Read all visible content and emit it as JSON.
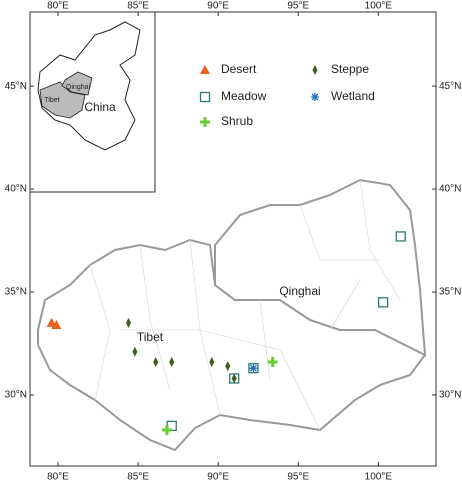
{
  "chart_data": {
    "type": "scatter",
    "xlim": [
      78.25,
      103.6
    ],
    "ylim": [
      26.55,
      48.6
    ],
    "xticks": [
      {
        "value": 80,
        "label": "80°E"
      },
      {
        "value": 85,
        "label": "85°E"
      },
      {
        "value": 90,
        "label": "90°E"
      },
      {
        "value": 95,
        "label": "95°E"
      },
      {
        "value": 100,
        "label": "100°E"
      }
    ],
    "yticks": [
      {
        "value": 30,
        "label": "30°N"
      },
      {
        "value": 35,
        "label": "35°N"
      },
      {
        "value": 40,
        "label": "40°N"
      },
      {
        "value": 45,
        "label": "45°N"
      }
    ],
    "region_labels": [
      "Tibet",
      "Qinghai"
    ],
    "inset_labels": [
      "China",
      "Qinghai",
      "Tibet"
    ],
    "series": [
      {
        "name": "Desert",
        "color": "#e8601c",
        "marker": "triangle",
        "x": [
          79.6,
          79.9
        ],
        "values": [
          33.5,
          33.4
        ]
      },
      {
        "name": "Meadow",
        "color": "#2a7a7a",
        "marker": "square",
        "x": [
          101.4,
          100.3,
          91.0,
          92.2,
          87.1
        ],
        "values": [
          37.7,
          34.5,
          30.8,
          31.3,
          28.5
        ]
      },
      {
        "name": "Shrub",
        "color": "#66cc33",
        "marker": "plus",
        "x": [
          93.4,
          86.8
        ],
        "values": [
          31.6,
          28.3
        ]
      },
      {
        "name": "Steppe",
        "color": "#3d5f1e",
        "marker": "diamond",
        "x": [
          84.4,
          84.8,
          86.1,
          87.1,
          89.6,
          90.6,
          91.0
        ],
        "values": [
          33.5,
          32.1,
          31.6,
          31.6,
          31.6,
          31.4,
          30.8
        ]
      },
      {
        "name": "Wetland",
        "color": "#1f6fb5",
        "marker": "asterisk",
        "x": [
          92.2
        ],
        "values": [
          31.3
        ]
      }
    ]
  }
}
